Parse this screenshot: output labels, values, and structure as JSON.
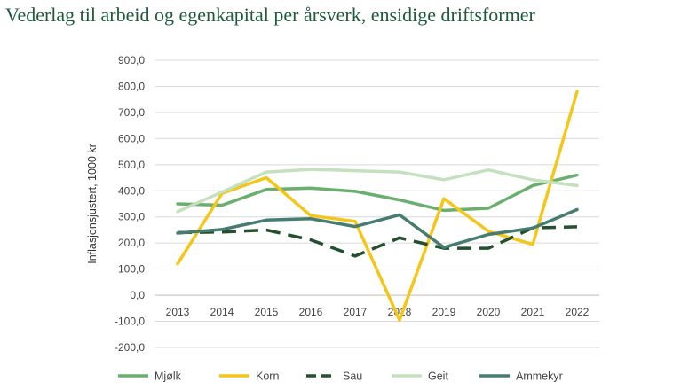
{
  "title": "Vederlag til arbeid og egenkapital per årsverk, ensidige driftsformer",
  "chart_data": {
    "type": "line",
    "title": "Vederlag til arbeid og egenkapital per årsverk, ensidige driftsformer",
    "xlabel": "",
    "ylabel": "Inflasjonsjustert, 1000 kr",
    "ylim": [
      -200,
      900
    ],
    "ytick_step": 100,
    "yticks": [
      "-200,0",
      "-100,0",
      "0,0",
      "100,0",
      "200,0",
      "300,0",
      "400,0",
      "500,0",
      "600,0",
      "700,0",
      "800,0",
      "900,0"
    ],
    "categories": [
      "2013",
      "2014",
      "2015",
      "2016",
      "2017",
      "2018",
      "2019",
      "2020",
      "2021",
      "2022"
    ],
    "grid": true,
    "legend_position": "bottom",
    "series": [
      {
        "name": "Mjølk",
        "color": "#6aaf6e",
        "dash": "solid",
        "values": [
          350,
          345,
          405,
          410,
          398,
          365,
          325,
          333,
          420,
          460
        ]
      },
      {
        "name": "Korn",
        "color": "#f5c61a",
        "dash": "solid",
        "values": [
          120,
          390,
          450,
          305,
          283,
          -95,
          370,
          245,
          195,
          780
        ]
      },
      {
        "name": "Sau",
        "color": "#25502f",
        "dash": "dashed",
        "values": [
          240,
          242,
          250,
          212,
          150,
          220,
          180,
          180,
          258,
          262
        ]
      },
      {
        "name": "Geit",
        "color": "#c4e0be",
        "dash": "solid",
        "values": [
          320,
          395,
          472,
          482,
          477,
          472,
          442,
          480,
          442,
          420
        ]
      },
      {
        "name": "Ammekyr",
        "color": "#467d70",
        "dash": "solid",
        "values": [
          238,
          252,
          288,
          293,
          263,
          308,
          183,
          233,
          257,
          328
        ]
      }
    ]
  }
}
